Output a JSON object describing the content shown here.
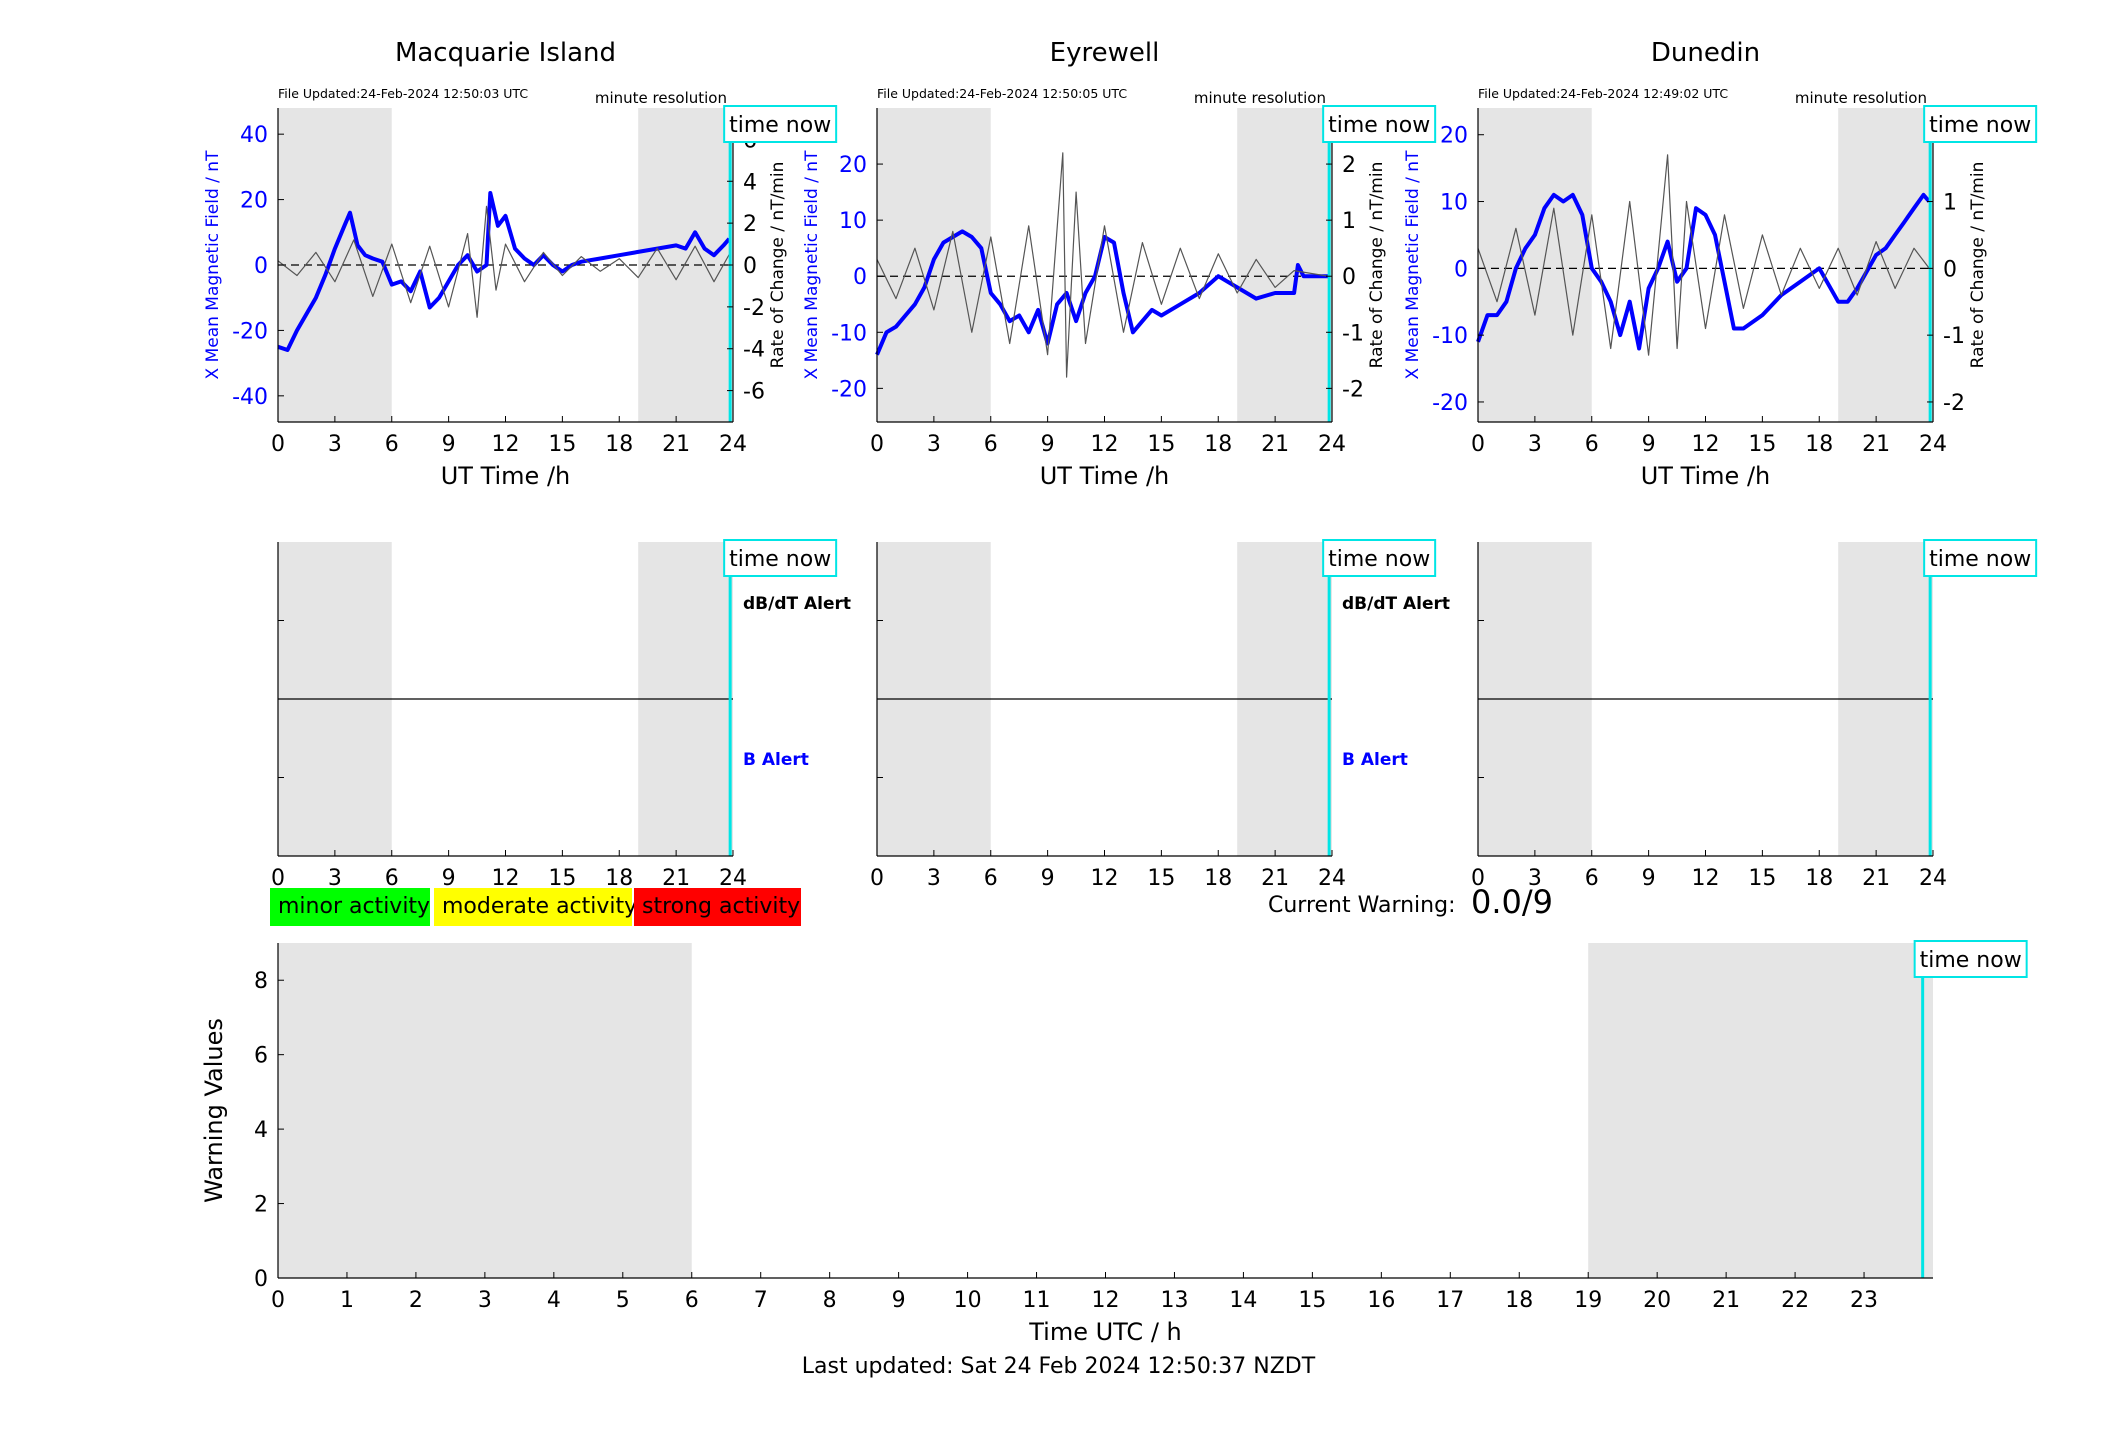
{
  "chart_data": [
    {
      "type": "line",
      "title": "Macquarie Island",
      "file_updated": "File Updated:24-Feb-2024 12:50:03 UTC",
      "resolution_label": "minute resolution",
      "time_now_label": "time now",
      "xlabel": "UT Time /h",
      "ylabel": "X Mean Magnetic Field / nT",
      "ylabel_right": "Rate of Change / nT/min",
      "xlim": [
        0,
        24
      ],
      "ylim": [
        -48,
        48
      ],
      "ylim_right": [
        -7.5,
        7.5
      ],
      "xticks": [
        0,
        3,
        6,
        9,
        12,
        15,
        18,
        21,
        24
      ],
      "yticks": [
        -40,
        -20,
        0,
        20,
        40
      ],
      "yticks_right": [
        -6,
        -4,
        -2,
        0,
        2,
        4,
        6
      ],
      "night_shading": [
        [
          0,
          6
        ],
        [
          19,
          24
        ]
      ],
      "time_now": 23.85,
      "series": [
        {
          "color": "#0000ff",
          "x": [
            0,
            0.5,
            1,
            1.5,
            2,
            2.5,
            3,
            3.5,
            3.8,
            4.2,
            4.6,
            5,
            5.5,
            6,
            6.5,
            7,
            7.5,
            8,
            8.5,
            9,
            9.5,
            10,
            10.5,
            11,
            11.2,
            11.6,
            12,
            12.5,
            13,
            13.5,
            14,
            14.5,
            15,
            15.5,
            16,
            17,
            18,
            19,
            20,
            21,
            21.5,
            22,
            22.5,
            23,
            23.5,
            23.8
          ],
          "y": [
            -25,
            -26,
            -20,
            -15,
            -10,
            -3,
            5,
            12,
            16,
            6,
            3,
            2,
            1,
            -6,
            -5,
            -8,
            -2,
            -13,
            -10,
            -5,
            0,
            3,
            -2,
            0,
            22,
            12,
            15,
            5,
            2,
            0,
            3,
            0,
            -2,
            0,
            1,
            2,
            3,
            4,
            5,
            6,
            5,
            10,
            5,
            3,
            6,
            8
          ]
        },
        {
          "name": "Rate of Change",
          "color": "#555555",
          "axis": "right",
          "x": [
            0,
            1,
            2,
            3,
            4,
            5,
            6,
            7,
            8,
            9,
            10,
            10.5,
            11,
            11.5,
            12,
            13,
            14,
            15,
            16,
            17,
            18,
            19,
            20,
            21,
            22,
            23,
            23.8
          ],
          "y": [
            0.2,
            -0.5,
            0.6,
            -0.8,
            1.2,
            -1.5,
            1.0,
            -1.8,
            0.9,
            -2.0,
            1.5,
            -2.5,
            2.8,
            -1.2,
            1.0,
            -0.8,
            0.6,
            -0.5,
            0.4,
            -0.3,
            0.3,
            -0.6,
            0.8,
            -0.7,
            0.9,
            -0.8,
            0.5
          ]
        }
      ]
    },
    {
      "type": "line",
      "title": "Eyrewell",
      "file_updated": "File Updated:24-Feb-2024 12:50:05 UTC",
      "resolution_label": "minute resolution",
      "time_now_label": "time now",
      "xlabel": "UT Time /h",
      "ylabel": "X Mean Magnetic Field / nT",
      "ylabel_right": "Rate of Change / nT/min",
      "xlim": [
        0,
        24
      ],
      "ylim": [
        -26,
        30
      ],
      "ylim_right": [
        -2.6,
        3.0
      ],
      "xticks": [
        0,
        3,
        6,
        9,
        12,
        15,
        18,
        21,
        24
      ],
      "yticks": [
        -20,
        -10,
        0,
        10,
        20
      ],
      "yticks_right": [
        -2,
        -1,
        0,
        1,
        2
      ],
      "night_shading": [
        [
          0,
          6
        ],
        [
          19,
          24
        ]
      ],
      "time_now": 23.85,
      "series": [
        {
          "color": "#0000ff",
          "x": [
            0,
            0.5,
            1,
            1.5,
            2,
            2.5,
            3,
            3.5,
            4,
            4.5,
            5,
            5.5,
            6,
            6.5,
            7,
            7.5,
            8,
            8.5,
            9,
            9.5,
            10,
            10.5,
            11,
            11.5,
            12,
            12.5,
            13,
            13.5,
            14,
            14.5,
            15,
            16,
            17,
            18,
            19,
            20,
            21,
            22,
            22.2,
            22.5,
            23,
            23.8
          ],
          "y": [
            -14,
            -10,
            -9,
            -7,
            -5,
            -2,
            3,
            6,
            7,
            8,
            7,
            5,
            -3,
            -5,
            -8,
            -7,
            -10,
            -6,
            -12,
            -5,
            -3,
            -8,
            -3,
            0,
            7,
            6,
            -3,
            -10,
            -8,
            -6,
            -7,
            -5,
            -3,
            0,
            -2,
            -4,
            -3,
            -3,
            2,
            0,
            0,
            0
          ]
        },
        {
          "name": "Rate of Change",
          "color": "#555555",
          "axis": "right",
          "x": [
            0,
            1,
            2,
            3,
            4,
            5,
            6,
            7,
            8,
            9,
            9.8,
            10,
            10.5,
            11,
            12,
            13,
            14,
            15,
            16,
            17,
            18,
            19,
            20,
            21,
            22,
            23.8
          ],
          "y": [
            0.3,
            -0.4,
            0.5,
            -0.6,
            0.8,
            -1.0,
            0.7,
            -1.2,
            0.9,
            -1.4,
            2.2,
            -1.8,
            1.5,
            -1.2,
            0.9,
            -1.0,
            0.6,
            -0.5,
            0.5,
            -0.4,
            0.4,
            -0.3,
            0.3,
            -0.2,
            0.1,
            0.0
          ]
        }
      ]
    },
    {
      "type": "line",
      "title": "Dunedin",
      "file_updated": "File Updated:24-Feb-2024 12:49:02 UTC",
      "resolution_label": "minute resolution",
      "time_now_label": "time now",
      "xlabel": "UT Time /h",
      "ylabel": "X Mean Magnetic Field / nT",
      "ylabel_right": "Rate of Change / nT/min",
      "xlim": [
        0,
        24
      ],
      "ylim": [
        -23,
        24
      ],
      "ylim_right": [
        -2.3,
        2.4
      ],
      "xticks": [
        0,
        3,
        6,
        9,
        12,
        15,
        18,
        21,
        24
      ],
      "yticks": [
        -20,
        -10,
        0,
        10,
        20
      ],
      "yticks_right": [
        -2,
        -1,
        0,
        1,
        2
      ],
      "night_shading": [
        [
          0,
          6
        ],
        [
          19,
          24
        ]
      ],
      "time_now": 23.85,
      "series": [
        {
          "color": "#0000ff",
          "x": [
            0,
            0.5,
            1,
            1.5,
            2,
            2.5,
            3,
            3.5,
            4,
            4.5,
            5,
            5.5,
            6,
            6.5,
            7,
            7.5,
            8,
            8.5,
            9,
            9.5,
            10,
            10.5,
            11,
            11.5,
            12,
            12.5,
            13,
            13.5,
            14,
            15,
            16,
            17,
            18,
            19,
            19.5,
            20,
            21,
            21.5,
            22,
            22.5,
            23,
            23.5,
            23.8
          ],
          "y": [
            -11,
            -7,
            -7,
            -5,
            0,
            3,
            5,
            9,
            11,
            10,
            11,
            8,
            0,
            -2,
            -5,
            -10,
            -5,
            -12,
            -3,
            0,
            4,
            -2,
            0,
            9,
            8,
            5,
            -2,
            -9,
            -9,
            -7,
            -4,
            -2,
            0,
            -5,
            -5,
            -3,
            2,
            3,
            5,
            7,
            9,
            11,
            10
          ]
        },
        {
          "name": "Rate of Change",
          "color": "#555555",
          "axis": "right",
          "x": [
            0,
            1,
            2,
            3,
            4,
            5,
            6,
            7,
            8,
            9,
            10,
            10.5,
            11,
            12,
            13,
            14,
            15,
            16,
            17,
            18,
            19,
            20,
            21,
            22,
            23,
            23.8
          ],
          "y": [
            0.3,
            -0.5,
            0.6,
            -0.7,
            0.9,
            -1.0,
            0.8,
            -1.2,
            1.0,
            -1.3,
            1.7,
            -1.2,
            1.0,
            -0.9,
            0.8,
            -0.6,
            0.5,
            -0.4,
            0.3,
            -0.3,
            0.3,
            -0.4,
            0.4,
            -0.3,
            0.3,
            0.0
          ]
        }
      ]
    },
    {
      "type": "line",
      "title": "",
      "time_now_label": "time now",
      "xlim": [
        0,
        24
      ],
      "xticks": [
        0,
        3,
        6,
        9,
        12,
        15,
        18,
        21,
        24
      ],
      "night_shading": [
        [
          0,
          6
        ],
        [
          19,
          24
        ]
      ],
      "time_now": 23.85,
      "alert_top": "dB/dT Alert",
      "alert_bottom": "B Alert",
      "series": []
    },
    {
      "type": "line",
      "title": "",
      "time_now_label": "time now",
      "xlim": [
        0,
        24
      ],
      "xticks": [
        0,
        3,
        6,
        9,
        12,
        15,
        18,
        21,
        24
      ],
      "night_shading": [
        [
          0,
          6
        ],
        [
          19,
          24
        ]
      ],
      "time_now": 23.85,
      "alert_top": "dB/dT Alert",
      "alert_bottom": "B Alert",
      "series": []
    },
    {
      "type": "line",
      "title": "",
      "time_now_label": "time now",
      "xlim": [
        0,
        24
      ],
      "xticks": [
        0,
        3,
        6,
        9,
        12,
        15,
        18,
        21,
        24
      ],
      "night_shading": [
        [
          0,
          6
        ],
        [
          19,
          24
        ]
      ],
      "time_now": 23.85,
      "series": []
    },
    {
      "type": "line",
      "title": "",
      "time_now_label": "time now",
      "xlabel": "Time UTC / h",
      "ylabel": "Warning Values",
      "xlim": [
        0,
        24
      ],
      "ylim": [
        0,
        9
      ],
      "xticks": [
        0,
        1,
        2,
        3,
        4,
        5,
        6,
        7,
        8,
        9,
        10,
        11,
        12,
        13,
        14,
        15,
        16,
        17,
        18,
        19,
        20,
        21,
        22,
        23
      ],
      "yticks": [
        0,
        2,
        4,
        6,
        8
      ],
      "night_shading": [
        [
          0,
          6
        ],
        [
          19,
          24
        ]
      ],
      "time_now": 23.85,
      "series": []
    }
  ],
  "legend": [
    {
      "label": "minor activity",
      "color": "#00ff00"
    },
    {
      "label": "moderate activity",
      "color": "#ffff00"
    },
    {
      "label": "strong activity",
      "color": "#ff0000"
    }
  ],
  "current_warning": {
    "label": "Current Warning:",
    "value": "0.0/9"
  },
  "footer": "Last updated: Sat 24 Feb 2024 12:50:37 NZDT",
  "colors": {
    "night": "#e5e5e5",
    "time_now": "#00e5e5",
    "field": "#0000ff",
    "rate": "#555555"
  }
}
